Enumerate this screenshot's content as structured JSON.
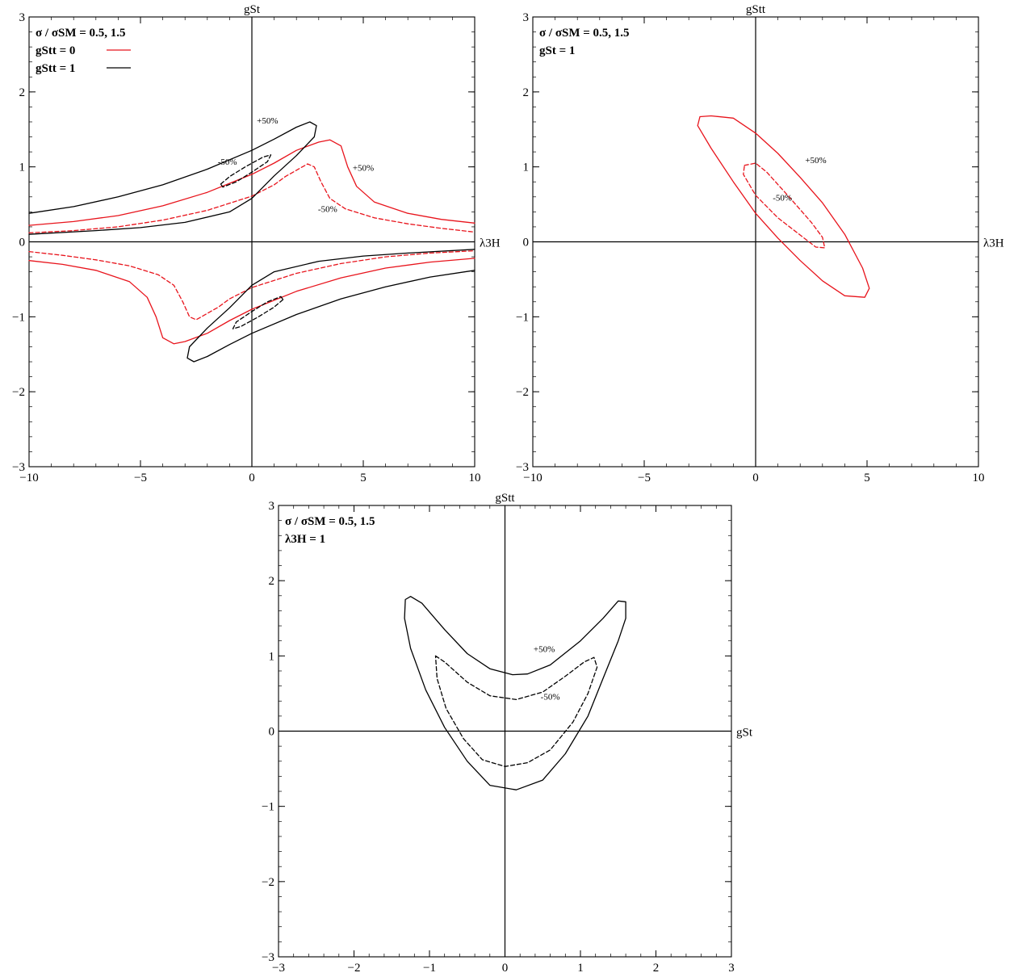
{
  "colors": {
    "red": "#e8141c",
    "black": "#000000"
  },
  "chart_data": [
    {
      "type": "line",
      "x_axis_label": "λ3H",
      "y_axis_label": "gSt",
      "xlim": [
        -10,
        10
      ],
      "ylim": [
        -3,
        3
      ],
      "x_ticks": [
        -10,
        -5,
        0,
        5,
        10
      ],
      "y_ticks": [
        -3,
        -2,
        -1,
        0,
        1,
        2,
        3
      ],
      "legend": [
        "σ / σSM = 0.5,  1.5",
        "gStt = 0",
        "gStt = 1"
      ],
      "labels": [
        {
          "text": "+50%",
          "x": 0.7,
          "y": 1.58
        },
        {
          "text": "-50%",
          "x": -1.1,
          "y": 1.03
        },
        {
          "text": "+50%",
          "x": 5.0,
          "y": 0.95
        },
        {
          "text": "-50%",
          "x": 3.4,
          "y": 0.4
        }
      ],
      "series": [
        {
          "color": "#e8141c",
          "dash": false,
          "closed": false,
          "points": [
            [
              -10,
              0.22
            ],
            [
              -8,
              0.27
            ],
            [
              -6,
              0.35
            ],
            [
              -4,
              0.48
            ],
            [
              -2,
              0.66
            ],
            [
              0,
              0.9
            ],
            [
              1,
              1.05
            ],
            [
              2,
              1.22
            ],
            [
              3,
              1.33
            ],
            [
              3.5,
              1.36
            ],
            [
              4,
              1.28
            ],
            [
              4.3,
              1.0
            ],
            [
              4.7,
              0.74
            ],
            [
              5.5,
              0.53
            ],
            [
              7,
              0.38
            ],
            [
              8.5,
              0.3
            ],
            [
              10,
              0.25
            ]
          ]
        },
        {
          "color": "#e8141c",
          "dash": true,
          "closed": false,
          "points": [
            [
              -10,
              0.12
            ],
            [
              -8,
              0.15
            ],
            [
              -6,
              0.2
            ],
            [
              -4,
              0.29
            ],
            [
              -2,
              0.42
            ],
            [
              0,
              0.61
            ],
            [
              1,
              0.76
            ],
            [
              1.5,
              0.87
            ],
            [
              2.5,
              1.04
            ],
            [
              2.8,
              1.0
            ],
            [
              3.1,
              0.8
            ],
            [
              3.5,
              0.58
            ],
            [
              4.2,
              0.44
            ],
            [
              5.5,
              0.32
            ],
            [
              7,
              0.24
            ],
            [
              8.5,
              0.18
            ],
            [
              10,
              0.13
            ]
          ]
        },
        {
          "color": "#e8141c",
          "dash": false,
          "closed": false,
          "points": [
            [
              -10,
              -0.25
            ],
            [
              -8.5,
              -0.3
            ],
            [
              -7,
              -0.38
            ],
            [
              -5.5,
              -0.53
            ],
            [
              -4.7,
              -0.74
            ],
            [
              -4.3,
              -1.0
            ],
            [
              -4,
              -1.28
            ],
            [
              -3.5,
              -1.36
            ],
            [
              -3,
              -1.33
            ],
            [
              -2,
              -1.22
            ],
            [
              -1,
              -1.05
            ],
            [
              0,
              -0.9
            ],
            [
              2,
              -0.66
            ],
            [
              4,
              -0.48
            ],
            [
              6,
              -0.35
            ],
            [
              8,
              -0.27
            ],
            [
              10,
              -0.22
            ]
          ]
        },
        {
          "color": "#e8141c",
          "dash": true,
          "closed": false,
          "points": [
            [
              -10,
              -0.13
            ],
            [
              -8.5,
              -0.18
            ],
            [
              -7,
              -0.24
            ],
            [
              -5.5,
              -0.32
            ],
            [
              -4.2,
              -0.44
            ],
            [
              -3.5,
              -0.58
            ],
            [
              -3.1,
              -0.8
            ],
            [
              -2.8,
              -1.0
            ],
            [
              -2.5,
              -1.04
            ],
            [
              -1.5,
              -0.87
            ],
            [
              -1,
              -0.76
            ],
            [
              0,
              -0.61
            ],
            [
              2,
              -0.42
            ],
            [
              4,
              -0.29
            ],
            [
              6,
              -0.2
            ],
            [
              8,
              -0.15
            ],
            [
              10,
              -0.12
            ]
          ]
        },
        {
          "color": "#000000",
          "dash": false,
          "closed": false,
          "points": [
            [
              -10,
              0.38
            ],
            [
              -8,
              0.47
            ],
            [
              -6,
              0.6
            ],
            [
              -4,
              0.76
            ],
            [
              -2,
              0.97
            ],
            [
              0,
              1.22
            ],
            [
              1,
              1.37
            ],
            [
              2,
              1.53
            ],
            [
              2.6,
              1.6
            ],
            [
              2.9,
              1.55
            ],
            [
              2.8,
              1.4
            ],
            [
              2,
              1.15
            ],
            [
              1,
              0.88
            ],
            [
              0,
              0.58
            ],
            [
              -1,
              0.4
            ],
            [
              -3,
              0.26
            ],
            [
              -5,
              0.19
            ],
            [
              -7,
              0.15
            ],
            [
              -10,
              0.1
            ]
          ]
        },
        {
          "color": "#000000",
          "dash": false,
          "closed": false,
          "points": [
            [
              10,
              -0.38
            ],
            [
              8,
              -0.47
            ],
            [
              6,
              -0.6
            ],
            [
              4,
              -0.76
            ],
            [
              2,
              -0.97
            ],
            [
              0,
              -1.22
            ],
            [
              -1,
              -1.37
            ],
            [
              -2,
              -1.53
            ],
            [
              -2.6,
              -1.6
            ],
            [
              -2.9,
              -1.55
            ],
            [
              -2.8,
              -1.4
            ],
            [
              -2,
              -1.15
            ],
            [
              -1,
              -0.88
            ],
            [
              0,
              -0.58
            ],
            [
              1,
              -0.4
            ],
            [
              3,
              -0.26
            ],
            [
              5,
              -0.19
            ],
            [
              7,
              -0.15
            ],
            [
              10,
              -0.1
            ]
          ]
        },
        {
          "color": "#000000",
          "dash": true,
          "closed": true,
          "points": [
            [
              -1.4,
              0.77
            ],
            [
              -1.0,
              0.87
            ],
            [
              -0.3,
              1.0
            ],
            [
              0.5,
              1.13
            ],
            [
              0.85,
              1.16
            ],
            [
              0.7,
              1.07
            ],
            [
              0.0,
              0.93
            ],
            [
              -0.7,
              0.8
            ],
            [
              -1.3,
              0.73
            ]
          ]
        },
        {
          "color": "#000000",
          "dash": true,
          "closed": true,
          "points": [
            [
              1.4,
              -0.77
            ],
            [
              1.0,
              -0.87
            ],
            [
              0.3,
              -1.0
            ],
            [
              -0.5,
              -1.13
            ],
            [
              -0.85,
              -1.16
            ],
            [
              -0.7,
              -1.07
            ],
            [
              0.0,
              -0.93
            ],
            [
              0.7,
              -0.8
            ],
            [
              1.3,
              -0.73
            ]
          ]
        }
      ]
    },
    {
      "type": "line",
      "x_axis_label": "λ3H",
      "y_axis_label": "gStt",
      "xlim": [
        -10,
        10
      ],
      "ylim": [
        -3,
        3
      ],
      "x_ticks": [
        -10,
        -5,
        0,
        5,
        10
      ],
      "y_ticks": [
        -3,
        -2,
        -1,
        0,
        1,
        2,
        3
      ],
      "legend": [
        "σ / σSM = 0.5,  1.5",
        "gSt = 1"
      ],
      "labels": [
        {
          "text": "+50%",
          "x": 2.7,
          "y": 1.05
        },
        {
          "text": "-50%",
          "x": 1.2,
          "y": 0.55
        }
      ],
      "series": [
        {
          "color": "#e8141c",
          "dash": false,
          "closed": true,
          "points": [
            [
              -2,
              1.68
            ],
            [
              -1,
              1.65
            ],
            [
              0,
              1.45
            ],
            [
              1,
              1.18
            ],
            [
              2,
              0.86
            ],
            [
              3,
              0.52
            ],
            [
              4,
              0.1
            ],
            [
              4.8,
              -0.35
            ],
            [
              5.1,
              -0.62
            ],
            [
              4.9,
              -0.74
            ],
            [
              4,
              -0.72
            ],
            [
              3,
              -0.52
            ],
            [
              2,
              -0.25
            ],
            [
              1,
              0.05
            ],
            [
              0,
              0.38
            ],
            [
              -1,
              0.8
            ],
            [
              -2,
              1.25
            ],
            [
              -2.6,
              1.55
            ],
            [
              -2.5,
              1.67
            ]
          ]
        },
        {
          "color": "#e8141c",
          "dash": true,
          "closed": true,
          "points": [
            [
              -0.5,
              1.02
            ],
            [
              0,
              1.05
            ],
            [
              0.5,
              0.93
            ],
            [
              1.5,
              0.6
            ],
            [
              2.5,
              0.26
            ],
            [
              3.0,
              0.06
            ],
            [
              3.1,
              -0.08
            ],
            [
              2.7,
              -0.07
            ],
            [
              2,
              0.09
            ],
            [
              1,
              0.32
            ],
            [
              0,
              0.62
            ],
            [
              -0.55,
              0.9
            ]
          ]
        }
      ]
    },
    {
      "type": "line",
      "x_axis_label": "gSt",
      "y_axis_label": "gStt",
      "xlim": [
        -3,
        3
      ],
      "ylim": [
        -3,
        3
      ],
      "x_ticks": [
        -3,
        -2,
        -1,
        0,
        1,
        2,
        3
      ],
      "y_ticks": [
        -3,
        -2,
        -1,
        0,
        1,
        2,
        3
      ],
      "legend": [
        "σ / σSM = 0.5,  1.5",
        "λ3H = 1"
      ],
      "labels": [
        {
          "text": "+50%",
          "x": 0.52,
          "y": 1.05
        },
        {
          "text": "-50%",
          "x": 0.6,
          "y": 0.42
        }
      ],
      "series": [
        {
          "color": "#000000",
          "dash": false,
          "closed": true,
          "points": [
            [
              -1.25,
              1.79
            ],
            [
              -1.1,
              1.7
            ],
            [
              -0.8,
              1.35
            ],
            [
              -0.5,
              1.03
            ],
            [
              -0.2,
              0.83
            ],
            [
              0.1,
              0.75
            ],
            [
              0.3,
              0.76
            ],
            [
              0.6,
              0.88
            ],
            [
              1.0,
              1.2
            ],
            [
              1.3,
              1.5
            ],
            [
              1.5,
              1.73
            ],
            [
              1.6,
              1.72
            ],
            [
              1.6,
              1.5
            ],
            [
              1.5,
              1.2
            ],
            [
              1.3,
              0.7
            ],
            [
              1.1,
              0.2
            ],
            [
              0.8,
              -0.3
            ],
            [
              0.5,
              -0.65
            ],
            [
              0.15,
              -0.78
            ],
            [
              -0.2,
              -0.72
            ],
            [
              -0.5,
              -0.4
            ],
            [
              -0.8,
              0.05
            ],
            [
              -1.05,
              0.55
            ],
            [
              -1.25,
              1.1
            ],
            [
              -1.33,
              1.5
            ],
            [
              -1.32,
              1.75
            ]
          ]
        },
        {
          "color": "#000000",
          "dash": true,
          "closed": true,
          "points": [
            [
              -0.92,
              1.0
            ],
            [
              -0.8,
              0.92
            ],
            [
              -0.5,
              0.65
            ],
            [
              -0.2,
              0.47
            ],
            [
              0.15,
              0.42
            ],
            [
              0.5,
              0.52
            ],
            [
              0.8,
              0.73
            ],
            [
              1.05,
              0.92
            ],
            [
              1.18,
              0.98
            ],
            [
              1.22,
              0.85
            ],
            [
              1.1,
              0.5
            ],
            [
              0.9,
              0.12
            ],
            [
              0.6,
              -0.25
            ],
            [
              0.3,
              -0.42
            ],
            [
              0,
              -0.47
            ],
            [
              -0.3,
              -0.38
            ],
            [
              -0.55,
              -0.1
            ],
            [
              -0.78,
              0.3
            ],
            [
              -0.9,
              0.7
            ]
          ]
        }
      ]
    }
  ]
}
